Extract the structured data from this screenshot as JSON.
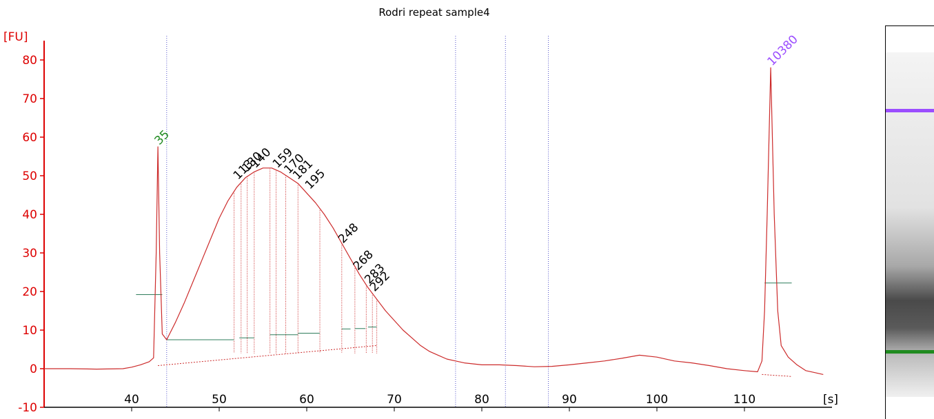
{
  "chart_data": {
    "type": "line",
    "title": "Rodri repeat sample4",
    "ylabel": "[FU]",
    "xlabel": "[s]",
    "xlim": [
      30,
      120
    ],
    "ylim": [
      -10,
      85
    ],
    "x_ticks": [
      40,
      50,
      60,
      70,
      80,
      90,
      100,
      110
    ],
    "y_ticks": [
      -10,
      0,
      10,
      20,
      30,
      40,
      50,
      60,
      70,
      80
    ],
    "colors": {
      "trace": "#cc2a2a",
      "axis": "#dd0000",
      "marker_lower": "#1f8a1f",
      "marker_upper": "#9b4dff",
      "baseline": "#2e7d5b",
      "window": "#5555cc",
      "labels": "#000000"
    },
    "peak_labels": [
      {
        "x": 43.0,
        "y": 57.5,
        "label": "35",
        "kind": "lower_marker"
      },
      {
        "x": 52.0,
        "y": 48.5,
        "label": "113",
        "kind": "peak"
      },
      {
        "x": 53.0,
        "y": 50.5,
        "label": "130",
        "kind": "peak"
      },
      {
        "x": 54.0,
        "y": 51.5,
        "label": "140",
        "kind": "peak"
      },
      {
        "x": 56.5,
        "y": 51.5,
        "label": "159",
        "kind": "peak"
      },
      {
        "x": 57.8,
        "y": 50.0,
        "label": "170",
        "kind": "peak"
      },
      {
        "x": 58.8,
        "y": 48.5,
        "label": "181",
        "kind": "peak"
      },
      {
        "x": 60.2,
        "y": 46.0,
        "label": "195",
        "kind": "peak"
      },
      {
        "x": 64.0,
        "y": 32.0,
        "label": "248",
        "kind": "peak"
      },
      {
        "x": 65.7,
        "y": 25.0,
        "label": "268",
        "kind": "peak"
      },
      {
        "x": 67.0,
        "y": 21.5,
        "label": "283",
        "kind": "peak"
      },
      {
        "x": 67.6,
        "y": 19.5,
        "label": "292",
        "kind": "peak"
      },
      {
        "x": 113.0,
        "y": 78.0,
        "label": "10380",
        "kind": "upper_marker"
      }
    ],
    "vertical_windows": [
      44.0,
      77.0,
      82.7,
      87.6
    ],
    "peak_drops": [
      51.7,
      52.5,
      53.2,
      54.0,
      55.8,
      56.5,
      57.6,
      59.0,
      61.5,
      64.0,
      65.5,
      66.8,
      67.5,
      68.0
    ],
    "baseline_segments": [
      {
        "x1": 40.5,
        "x2": 43.5,
        "y": 19.2
      },
      {
        "x1": 44.0,
        "x2": 51.7,
        "y": 7.5
      },
      {
        "x1": 52.3,
        "x2": 54.0,
        "y": 8.0
      },
      {
        "x1": 55.8,
        "x2": 59.0,
        "y": 8.8
      },
      {
        "x1": 59.0,
        "x2": 61.5,
        "y": 9.2
      },
      {
        "x1": 64.0,
        "x2": 65.0,
        "y": 10.3
      },
      {
        "x1": 65.5,
        "x2": 66.7,
        "y": 10.4
      },
      {
        "x1": 67.0,
        "x2": 68.0,
        "y": 10.8
      },
      {
        "x1": 112.3,
        "x2": 115.4,
        "y": 22.2
      }
    ],
    "trace_points": [
      [
        30.0,
        0.0
      ],
      [
        33.0,
        0.0
      ],
      [
        36.0,
        -0.1
      ],
      [
        39.0,
        0.0
      ],
      [
        40.0,
        0.4
      ],
      [
        41.0,
        1.0
      ],
      [
        42.0,
        1.8
      ],
      [
        42.5,
        2.8
      ],
      [
        42.8,
        30.0
      ],
      [
        43.0,
        57.5
      ],
      [
        43.2,
        30.0
      ],
      [
        43.5,
        9.0
      ],
      [
        44.0,
        7.5
      ],
      [
        45.0,
        12.0
      ],
      [
        46.0,
        17.0
      ],
      [
        47.0,
        22.5
      ],
      [
        48.0,
        28.0
      ],
      [
        49.0,
        33.5
      ],
      [
        50.0,
        39.0
      ],
      [
        51.0,
        43.5
      ],
      [
        52.0,
        47.0
      ],
      [
        53.0,
        49.5
      ],
      [
        54.0,
        51.0
      ],
      [
        55.0,
        52.0
      ],
      [
        56.0,
        52.0
      ],
      [
        57.0,
        51.0
      ],
      [
        58.0,
        49.5
      ],
      [
        59.0,
        48.0
      ],
      [
        60.0,
        45.5
      ],
      [
        61.0,
        43.0
      ],
      [
        62.0,
        40.0
      ],
      [
        63.0,
        36.5
      ],
      [
        64.0,
        32.5
      ],
      [
        65.0,
        28.5
      ],
      [
        66.0,
        24.5
      ],
      [
        67.0,
        21.0
      ],
      [
        68.0,
        18.0
      ],
      [
        69.0,
        15.0
      ],
      [
        70.0,
        12.5
      ],
      [
        71.0,
        10.0
      ],
      [
        72.0,
        8.0
      ],
      [
        73.0,
        6.0
      ],
      [
        74.0,
        4.5
      ],
      [
        75.0,
        3.5
      ],
      [
        76.0,
        2.5
      ],
      [
        77.0,
        2.0
      ],
      [
        78.0,
        1.5
      ],
      [
        80.0,
        1.0
      ],
      [
        82.0,
        1.0
      ],
      [
        84.0,
        0.8
      ],
      [
        86.0,
        0.5
      ],
      [
        88.0,
        0.6
      ],
      [
        90.0,
        1.0
      ],
      [
        92.0,
        1.5
      ],
      [
        94.0,
        2.0
      ],
      [
        96.0,
        2.7
      ],
      [
        98.0,
        3.5
      ],
      [
        100.0,
        3.0
      ],
      [
        102.0,
        2.0
      ],
      [
        104.0,
        1.5
      ],
      [
        106.0,
        0.8
      ],
      [
        108.0,
        0.0
      ],
      [
        110.0,
        -0.5
      ],
      [
        111.5,
        -0.8
      ],
      [
        112.0,
        2.0
      ],
      [
        112.3,
        15.0
      ],
      [
        112.6,
        40.0
      ],
      [
        113.0,
        78.0
      ],
      [
        113.4,
        40.0
      ],
      [
        113.8,
        15.0
      ],
      [
        114.2,
        6.0
      ],
      [
        115.0,
        3.0
      ],
      [
        116.0,
        1.0
      ],
      [
        117.0,
        -0.5
      ],
      [
        118.0,
        -1.0
      ],
      [
        119.0,
        -1.5
      ]
    ],
    "gel_bands": [
      {
        "label": "10380",
        "color": "#9b4dff"
      },
      {
        "label": "35",
        "color": "#1f8a1f"
      }
    ]
  }
}
